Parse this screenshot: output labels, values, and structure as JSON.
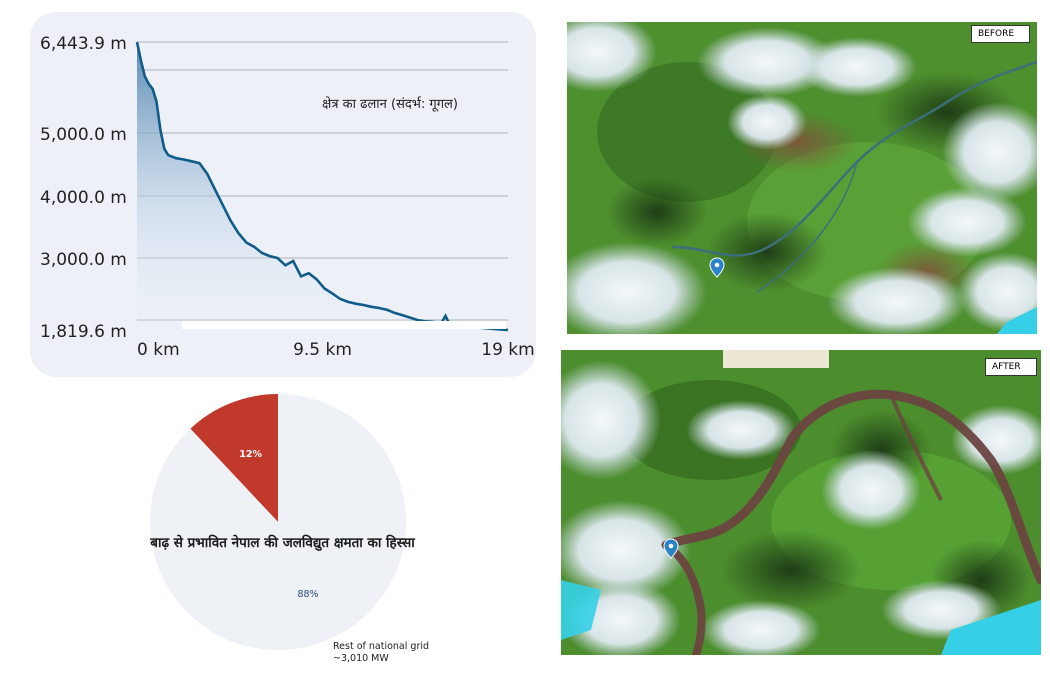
{
  "chart_data": [
    {
      "type": "area",
      "annotation": "क्षेत्र का ढलान (संदर्भ: गूगल)",
      "y_tick_labels": [
        "6,443.9 m",
        "5,000.0 m",
        "4,000.0 m",
        "3,000.0 m",
        "1,819.6 m"
      ],
      "y_ticks": [
        6443.9,
        5000,
        4000,
        3000,
        1819.6
      ],
      "x_tick_labels": [
        "0 km",
        "9.5 km",
        "19 km"
      ],
      "x_ticks": [
        0,
        9.5,
        19
      ],
      "xlim": [
        0,
        19
      ],
      "ylim": [
        1819.6,
        6443.9
      ],
      "unit_y": "m",
      "grid": true,
      "x": [
        0,
        0.2,
        0.4,
        0.6,
        0.8,
        1.0,
        1.2,
        1.4,
        1.6,
        2.0,
        2.4,
        2.8,
        3.2,
        3.6,
        4.0,
        4.4,
        4.8,
        5.2,
        5.6,
        6.0,
        6.4,
        6.8,
        7.2,
        7.6,
        8.0,
        8.4,
        8.8,
        9.2,
        9.6,
        10.0,
        10.4,
        10.8,
        11.2,
        11.6,
        12.0,
        12.4,
        12.8,
        13.2,
        13.6,
        14.0,
        14.4,
        14.8,
        15.2,
        15.6,
        15.8,
        16.0,
        16.2,
        16.4,
        16.6,
        17.0,
        17.4,
        17.8,
        18.2,
        18.6,
        19.0
      ],
      "values": [
        6443.9,
        6150,
        5900,
        5780,
        5700,
        5500,
        5050,
        4750,
        4650,
        4600,
        4580,
        4550,
        4520,
        4350,
        4100,
        3850,
        3600,
        3400,
        3250,
        3180,
        3080,
        3030,
        3000,
        2880,
        2950,
        2700,
        2750,
        2650,
        2500,
        2420,
        2330,
        2280,
        2250,
        2230,
        2200,
        2180,
        2150,
        2100,
        2060,
        2020,
        1980,
        1960,
        1950,
        1940,
        2050,
        1920,
        1900,
        1890,
        1880,
        1870,
        1860,
        1850,
        1840,
        1830,
        1819.6
      ]
    },
    {
      "type": "pie",
      "title": "बाढ़ से प्रभावित नेपाल की जलविद्युत क्षमता का हिस्सा",
      "slices": [
        {
          "label": "",
          "value": 12,
          "pct_label": "12%",
          "color": "#c0392b"
        },
        {
          "label": "Rest of national grid\n~3,010 MW",
          "value": 88,
          "pct_label": "88%",
          "color": "#eef2f7"
        }
      ]
    }
  ],
  "satellite": {
    "before_label": "BEFORE",
    "after_label": "AFTER"
  },
  "colors": {
    "elevation_line": "#0f5c8a",
    "pie_affected": "#c0392b",
    "pie_rest": "#eef2f7",
    "pie_pct_text": "#2b4a7a"
  }
}
